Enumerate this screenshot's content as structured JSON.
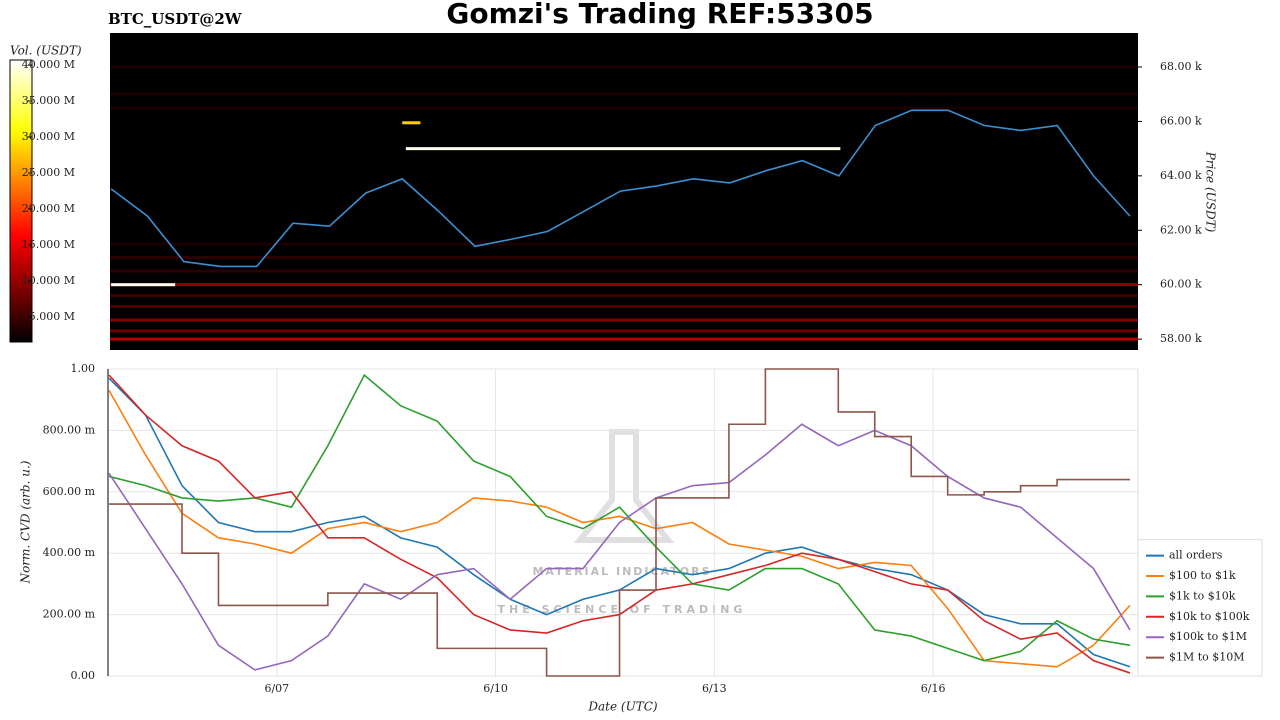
{
  "chart_data": [
    {
      "type": "heatmap",
      "title": "Gomzi's Trading REF:53305",
      "subtitle": "BTC_USDT@2W",
      "ylabel": "Price (USDT)",
      "xlim": [
        4.685,
        18.81
      ],
      "ylim": [
        57600,
        69250
      ],
      "yticks": [
        {
          "value": 58000,
          "label": "58.00 k"
        },
        {
          "value": 60000,
          "label": "60.00 k"
        },
        {
          "value": 62000,
          "label": "62.00 k"
        },
        {
          "value": 64000,
          "label": "64.00 k"
        },
        {
          "value": 66000,
          "label": "66.00 k"
        },
        {
          "value": 68000,
          "label": "68.00 k"
        }
      ],
      "x": [
        4.7,
        5.2,
        5.7,
        6.2,
        6.7,
        7.2,
        7.7,
        8.2,
        8.7,
        9.2,
        9.7,
        10.2,
        10.7,
        11.2,
        11.7,
        12.2,
        12.7,
        13.2,
        13.7,
        14.2,
        14.7,
        15.2,
        15.7,
        16.2,
        16.7,
        17.2,
        17.7,
        18.2,
        18.7
      ],
      "values": [
        63520,
        62520,
        60850,
        60670,
        60670,
        62260,
        62150,
        63370,
        63890,
        62700,
        61410,
        61670,
        61960,
        62700,
        63440,
        63630,
        63890,
        63740,
        64190,
        64560,
        64000,
        65850,
        66410,
        66410,
        65850,
        65670,
        65850,
        64000,
        62520
      ],
      "color": "#3a8fd0",
      "colormap": "hot",
      "colorbar": {
        "label": "Vol. (USDT)",
        "lim": [
          1500000,
          40700000
        ],
        "ticks": [
          {
            "value": 5000000,
            "label": "5.000 M"
          },
          {
            "value": 10000000,
            "label": "10.000 M"
          },
          {
            "value": 15000000,
            "label": "15.000 M"
          },
          {
            "value": 20000000,
            "label": "20.000 M"
          },
          {
            "value": 25000000,
            "label": "25.000 M"
          },
          {
            "value": 30000000,
            "label": "30.000 M"
          },
          {
            "value": 35000000,
            "label": "35.000 M"
          },
          {
            "value": 40000000,
            "label": "40.000 M"
          }
        ]
      },
      "bands": [
        {
          "price": 58000,
          "volume": 12000000,
          "x0": 4.685,
          "x1": 18.81
        },
        {
          "price": 58300,
          "volume": 8000000,
          "x0": 4.685,
          "x1": 18.81
        },
        {
          "price": 58700,
          "volume": 9000000,
          "x0": 4.685,
          "x1": 18.81
        },
        {
          "price": 59200,
          "volume": 6000000,
          "x0": 4.685,
          "x1": 18.81
        },
        {
          "price": 59600,
          "volume": 5000000,
          "x0": 4.685,
          "x1": 18.81
        },
        {
          "price": 60000,
          "volume": 10000000,
          "x0": 4.685,
          "x1": 18.81
        },
        {
          "price": 60500,
          "volume": 4000000,
          "x0": 4.685,
          "x1": 18.81
        },
        {
          "price": 61000,
          "volume": 4000000,
          "x0": 4.685,
          "x1": 18.81
        },
        {
          "price": 61500,
          "volume": 3000000,
          "x0": 4.685,
          "x1": 18.81
        },
        {
          "price": 66500,
          "volume": 3000000,
          "x0": 4.685,
          "x1": 18.81
        },
        {
          "price": 67000,
          "volume": 3000000,
          "x0": 4.685,
          "x1": 18.81
        },
        {
          "price": 68000,
          "volume": 3000000,
          "x0": 4.685,
          "x1": 18.81
        },
        {
          "price": 65000,
          "volume": 40000000,
          "x0": 8.75,
          "x1": 14.72
        },
        {
          "price": 60000,
          "volume": 40000000,
          "x0": 4.7,
          "x1": 5.58
        },
        {
          "price": 65950,
          "volume": 28000000,
          "x0": 8.7,
          "x1": 8.95
        }
      ]
    },
    {
      "type": "line",
      "xlabel": "Date (UTC)",
      "ylabel": "Norm. CVD (arb. u.)",
      "xlim": [
        4.685,
        18.81
      ],
      "ylim": [
        0,
        1
      ],
      "grid": true,
      "legend": "lower right",
      "xticks": [
        {
          "value": 7,
          "label": "6/07"
        },
        {
          "value": 10,
          "label": "6/10"
        },
        {
          "value": 13,
          "label": "6/13"
        },
        {
          "value": 16,
          "label": "6/16"
        }
      ],
      "yticks": [
        {
          "value": 0,
          "label": "0.00"
        },
        {
          "value": 0.2,
          "label": "200.00 m"
        },
        {
          "value": 0.4,
          "label": "400.00 m"
        },
        {
          "value": 0.6,
          "label": "600.00 m"
        },
        {
          "value": 0.8,
          "label": "800.00 m"
        },
        {
          "value": 1,
          "label": "1.00"
        }
      ],
      "annotations": [
        "MATERIAL INDICATORS",
        "THE SCIENCE OF TRADING"
      ],
      "x": [
        4.7,
        5.2,
        5.7,
        6.2,
        6.7,
        7.2,
        7.7,
        8.2,
        8.7,
        9.2,
        9.7,
        10.2,
        10.7,
        11.2,
        11.7,
        12.2,
        12.7,
        13.2,
        13.7,
        14.2,
        14.7,
        15.2,
        15.7,
        16.2,
        16.7,
        17.2,
        17.7,
        18.2,
        18.7
      ],
      "series": [
        {
          "name": "all orders",
          "color": "#1f77b4",
          "values": [
            0.97,
            0.85,
            0.62,
            0.5,
            0.47,
            0.47,
            0.5,
            0.52,
            0.45,
            0.42,
            0.33,
            0.25,
            0.2,
            0.25,
            0.28,
            0.35,
            0.33,
            0.35,
            0.4,
            0.42,
            0.38,
            0.35,
            0.33,
            0.28,
            0.2,
            0.17,
            0.17,
            0.07,
            0.03
          ]
        },
        {
          "name": "$100 to $1k",
          "color": "#ff7f0e",
          "values": [
            0.93,
            0.72,
            0.53,
            0.45,
            0.43,
            0.4,
            0.48,
            0.5,
            0.47,
            0.5,
            0.58,
            0.57,
            0.55,
            0.5,
            0.52,
            0.48,
            0.5,
            0.43,
            0.41,
            0.39,
            0.35,
            0.37,
            0.36,
            0.22,
            0.05,
            0.04,
            0.03,
            0.1,
            0.23
          ]
        },
        {
          "name": "$1k to $10k",
          "color": "#2ca02c",
          "values": [
            0.65,
            0.62,
            0.58,
            0.57,
            0.58,
            0.55,
            0.75,
            0.98,
            0.88,
            0.83,
            0.7,
            0.65,
            0.52,
            0.48,
            0.55,
            0.42,
            0.3,
            0.28,
            0.35,
            0.35,
            0.3,
            0.15,
            0.13,
            0.09,
            0.05,
            0.08,
            0.18,
            0.12,
            0.1
          ]
        },
        {
          "name": "$10k to $100k",
          "color": "#d62728",
          "values": [
            0.98,
            0.85,
            0.75,
            0.7,
            0.58,
            0.6,
            0.45,
            0.45,
            0.38,
            0.32,
            0.2,
            0.15,
            0.14,
            0.18,
            0.2,
            0.28,
            0.3,
            0.33,
            0.36,
            0.4,
            0.38,
            0.34,
            0.3,
            0.28,
            0.18,
            0.12,
            0.14,
            0.05,
            0.01
          ]
        },
        {
          "name": "$100k to $1M",
          "color": "#9467bd",
          "values": [
            0.66,
            0.48,
            0.3,
            0.1,
            0.02,
            0.05,
            0.13,
            0.3,
            0.25,
            0.33,
            0.35,
            0.25,
            0.35,
            0.35,
            0.5,
            0.58,
            0.62,
            0.63,
            0.72,
            0.82,
            0.75,
            0.8,
            0.75,
            0.65,
            0.58,
            0.55,
            0.45,
            0.35,
            0.15
          ]
        },
        {
          "name": "$1M to $10M",
          "color": "#8c564b",
          "drawstyle": "steps-post",
          "values": [
            0.56,
            0.56,
            0.4,
            0.23,
            0.23,
            0.23,
            0.27,
            0.27,
            0.27,
            0.09,
            0.09,
            0.09,
            0,
            0,
            0.28,
            0.58,
            0.58,
            0.82,
            1,
            1,
            0.86,
            0.78,
            0.65,
            0.59,
            0.6,
            0.62,
            0.64,
            0.64,
            0.64
          ]
        }
      ]
    }
  ]
}
